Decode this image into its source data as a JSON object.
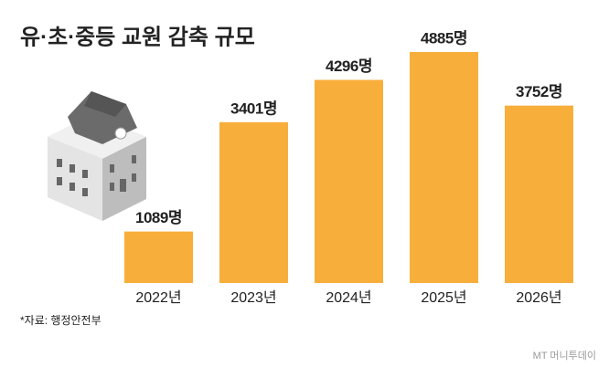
{
  "chart_data": {
    "type": "bar",
    "title": "유·초·중등 교원 감축 규모",
    "categories": [
      "2022년",
      "2023년",
      "2024년",
      "2025년",
      "2026년"
    ],
    "values": [
      1089,
      3401,
      4296,
      4885,
      3752
    ],
    "value_labels": [
      "1089명",
      "3401명",
      "4296명",
      "4885명",
      "3752명"
    ],
    "color": "#f8ae3b",
    "source": "*자료: 행정안전부",
    "watermark": "MT 머니투데이"
  }
}
